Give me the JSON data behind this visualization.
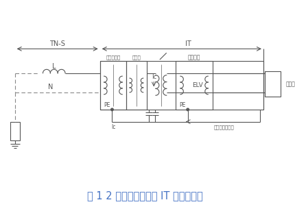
{
  "title": "图 1 2 类医疗场所内的 IT 系统示意图",
  "title_color": "#4472C4",
  "title_fontsize": 10.5,
  "bg_color": "#ffffff",
  "line_color": "#555555",
  "dash_color": "#888888",
  "labels": {
    "TN_S": "TN-S",
    "IT": "IT",
    "L": "L",
    "N": "N",
    "PE1": "PE",
    "PE2": "PE",
    "Ic_bottom": "Ic",
    "Ic_mid": "Ic",
    "ELV": "ELV",
    "iso_xfmr": "隔离变压器",
    "dist_box": "配电箱",
    "surg_equip": "手术设备",
    "surg_knife": "手术刀",
    "local_eq": "局部等电位联结"
  }
}
